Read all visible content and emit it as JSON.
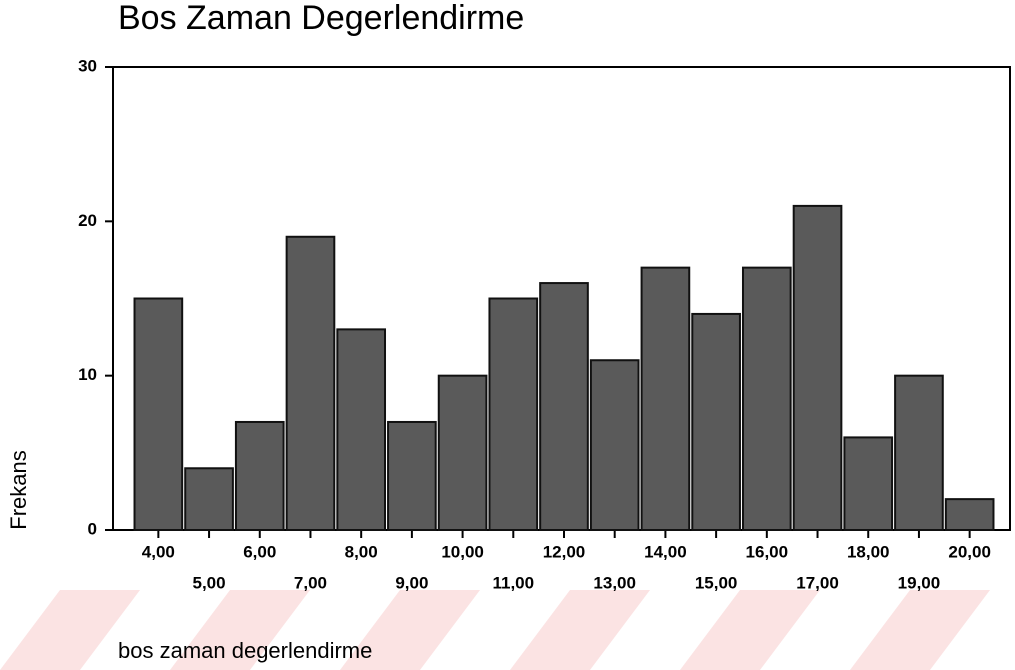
{
  "chart_data": {
    "type": "bar",
    "title": "Bos Zaman Degerlendirme",
    "x_label": "bos zaman degerlendirme",
    "y_label": "Frekans",
    "categories": [
      "4,00",
      "5,00",
      "6,00",
      "7,00",
      "8,00",
      "9,00",
      "10,00",
      "11,00",
      "12,00",
      "13,00",
      "14,00",
      "15,00",
      "16,00",
      "17,00",
      "18,00",
      "19,00",
      "20,00"
    ],
    "values": [
      15,
      4,
      7,
      19,
      13,
      7,
      10,
      15,
      16,
      11,
      17,
      14,
      17,
      21,
      6,
      10,
      2
    ],
    "color": "#5a5a5a",
    "ylim": [
      0,
      30
    ],
    "yticks": [
      0,
      10,
      20,
      30
    ],
    "grid": false
  }
}
